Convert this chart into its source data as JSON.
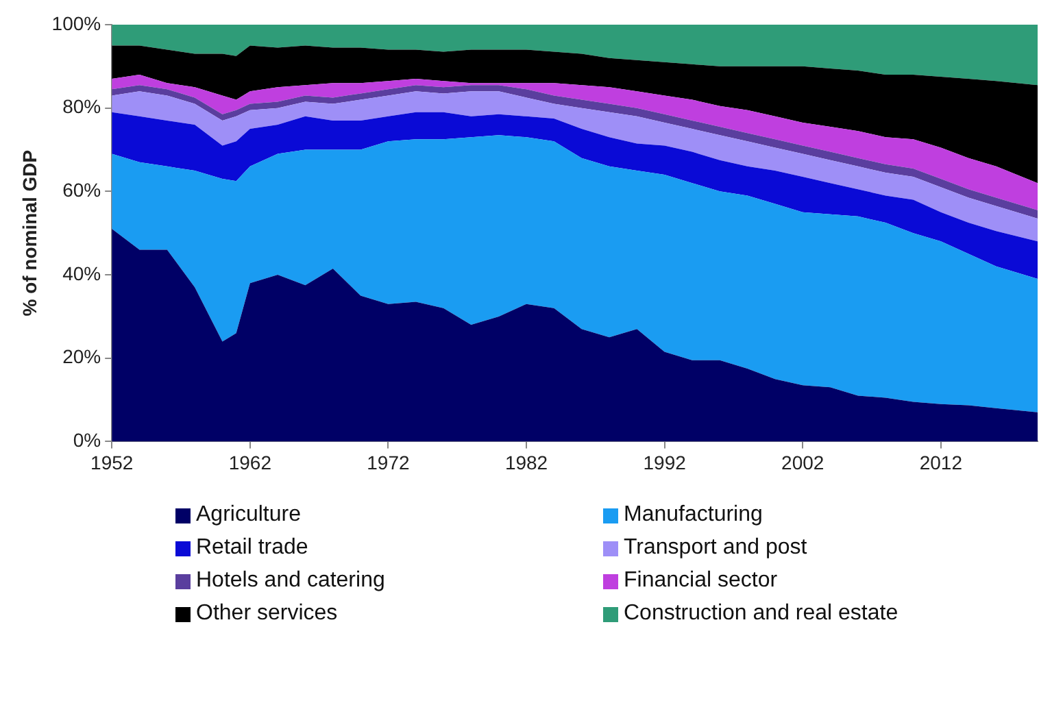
{
  "chart_data": {
    "type": "area",
    "stacked": true,
    "ylabel": "% of nominal GDP",
    "legend": "bottom",
    "grid": false,
    "x": [
      1952,
      1954,
      1956,
      1958,
      1960,
      1961,
      1962,
      1964,
      1966,
      1968,
      1970,
      1972,
      1974,
      1976,
      1978,
      1980,
      1982,
      1984,
      1986,
      1988,
      1990,
      1992,
      1994,
      1996,
      1998,
      2000,
      2002,
      2004,
      2006,
      2008,
      2010,
      2012,
      2014,
      2016,
      2019
    ],
    "xlim": [
      1952,
      2019
    ],
    "xticks": [
      1952,
      1962,
      1972,
      1982,
      1992,
      2002,
      2012
    ],
    "ylim": [
      0,
      100
    ],
    "yticks": [
      {
        "value": 0,
        "label": "0%"
      },
      {
        "value": 20,
        "label": "20%"
      },
      {
        "value": 40,
        "label": "40%"
      },
      {
        "value": 60,
        "label": "60%"
      },
      {
        "value": 80,
        "label": "80%"
      },
      {
        "value": 100,
        "label": "100%"
      }
    ],
    "series": [
      {
        "name": "Agriculture",
        "color": "#000066",
        "values": [
          51,
          46,
          46,
          37,
          24,
          26,
          38,
          40,
          37.5,
          41.5,
          35,
          33,
          33.5,
          32,
          28,
          30,
          33,
          32,
          27,
          25,
          27,
          21.5,
          19.5,
          19.5,
          17.5,
          15,
          13.5,
          13,
          11,
          10.5,
          9.5,
          9,
          8.7,
          8,
          7
        ]
      },
      {
        "name": "Manufacturing",
        "color": "#1a9cf2",
        "values": [
          18,
          21,
          20,
          28,
          39,
          36.5,
          28,
          29,
          32.5,
          28.5,
          35,
          39,
          39,
          40.5,
          45,
          43.5,
          40,
          40,
          41,
          41,
          38,
          42.5,
          42.5,
          40.5,
          41.5,
          42,
          41.5,
          41.5,
          43,
          42,
          40.5,
          39,
          36.3,
          34,
          32
        ]
      },
      {
        "name": "Retail trade",
        "color": "#0a0ad6",
        "values": [
          10,
          11,
          11,
          11,
          8,
          9.5,
          9,
          7,
          8,
          7,
          7,
          6,
          6.5,
          6.5,
          5,
          5,
          5,
          5.5,
          7,
          7,
          6.5,
          7,
          7.5,
          7.5,
          7,
          8,
          8.5,
          7.5,
          6.5,
          6.5,
          8,
          7,
          7.5,
          8.5,
          9
        ]
      },
      {
        "name": "Transport and post",
        "color": "#9e8ff7",
        "values": [
          4,
          6,
          6,
          5,
          6,
          6,
          4.5,
          4,
          3.5,
          4,
          5,
          5,
          5,
          4.5,
          6,
          5.5,
          4.5,
          3.5,
          5,
          6,
          6.5,
          5.5,
          5.5,
          6,
          6,
          5.5,
          5.5,
          5.5,
          5.5,
          5.5,
          5.5,
          6,
          6,
          6,
          5.5
        ]
      },
      {
        "name": "Hotels and catering",
        "color": "#5a3e9e",
        "values": [
          1.5,
          1.5,
          1.5,
          1.5,
          1.5,
          1.5,
          1.5,
          1.5,
          1.5,
          1.5,
          1.5,
          1.5,
          1.5,
          1.5,
          1.5,
          1.5,
          2,
          2,
          2,
          2,
          2,
          2,
          2,
          2,
          2,
          2,
          2,
          2,
          2,
          2,
          2,
          2,
          2,
          2,
          2
        ]
      },
      {
        "name": "Financial sector",
        "color": "#bf3fdf",
        "values": [
          2.5,
          2.5,
          1.5,
          2.5,
          4.5,
          2.5,
          3,
          3.5,
          2.5,
          3.5,
          2.5,
          2,
          1.5,
          1.5,
          0.5,
          0.5,
          1.5,
          3,
          3.5,
          4,
          4,
          4.5,
          5,
          5,
          5.5,
          5.5,
          5.5,
          6,
          6.5,
          6.5,
          7,
          7.5,
          7.5,
          7.5,
          6.5
        ]
      },
      {
        "name": "Other services",
        "color": "#000000",
        "values": [
          8,
          7,
          8,
          8,
          10,
          10.5,
          11,
          9.5,
          9.5,
          8.5,
          8.5,
          7.5,
          7,
          7,
          8,
          8,
          8,
          7.5,
          7.5,
          7,
          7.5,
          8,
          8.5,
          9.5,
          10.5,
          12,
          13.5,
          14,
          14.5,
          15,
          15.5,
          17,
          19,
          20.5,
          23.5
        ]
      },
      {
        "name": "Construction and real estate",
        "color": "#2f9c78",
        "values": [
          5,
          5,
          6,
          7,
          7,
          7.5,
          5,
          5.5,
          5,
          5.5,
          5.5,
          6,
          6,
          6.5,
          6,
          6,
          6,
          6.5,
          7,
          8,
          8.5,
          9,
          9.5,
          10,
          10,
          10,
          10,
          10.5,
          11,
          12,
          12,
          12.5,
          13,
          13.5,
          14.5
        ]
      }
    ]
  }
}
